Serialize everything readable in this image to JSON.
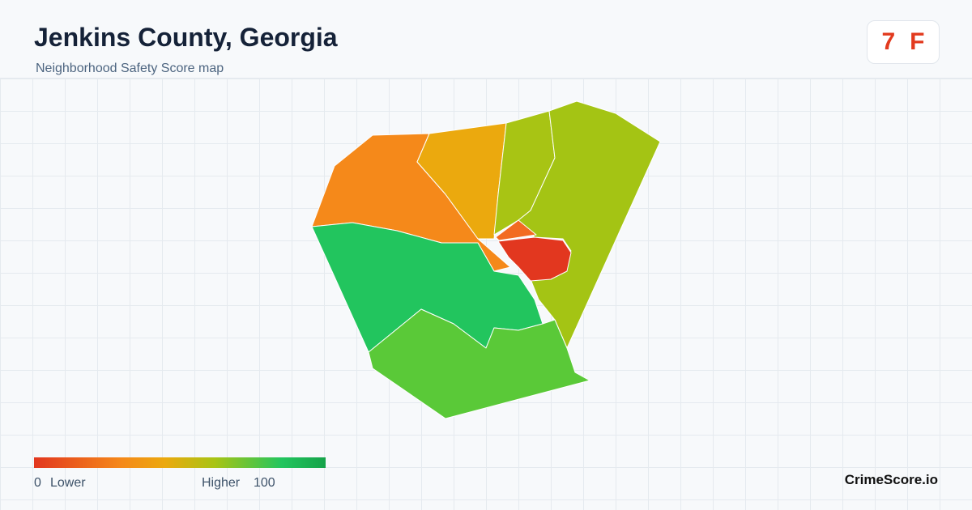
{
  "header": {
    "title": "Jenkins County, Georgia",
    "subtitle": "Neighborhood Safety Score map"
  },
  "badge": {
    "score": 7,
    "grade": "F"
  },
  "legend": {
    "min": 0,
    "min_label": "Lower",
    "max_label": "Higher",
    "max": 100
  },
  "brand": "CrimeScore.io"
}
